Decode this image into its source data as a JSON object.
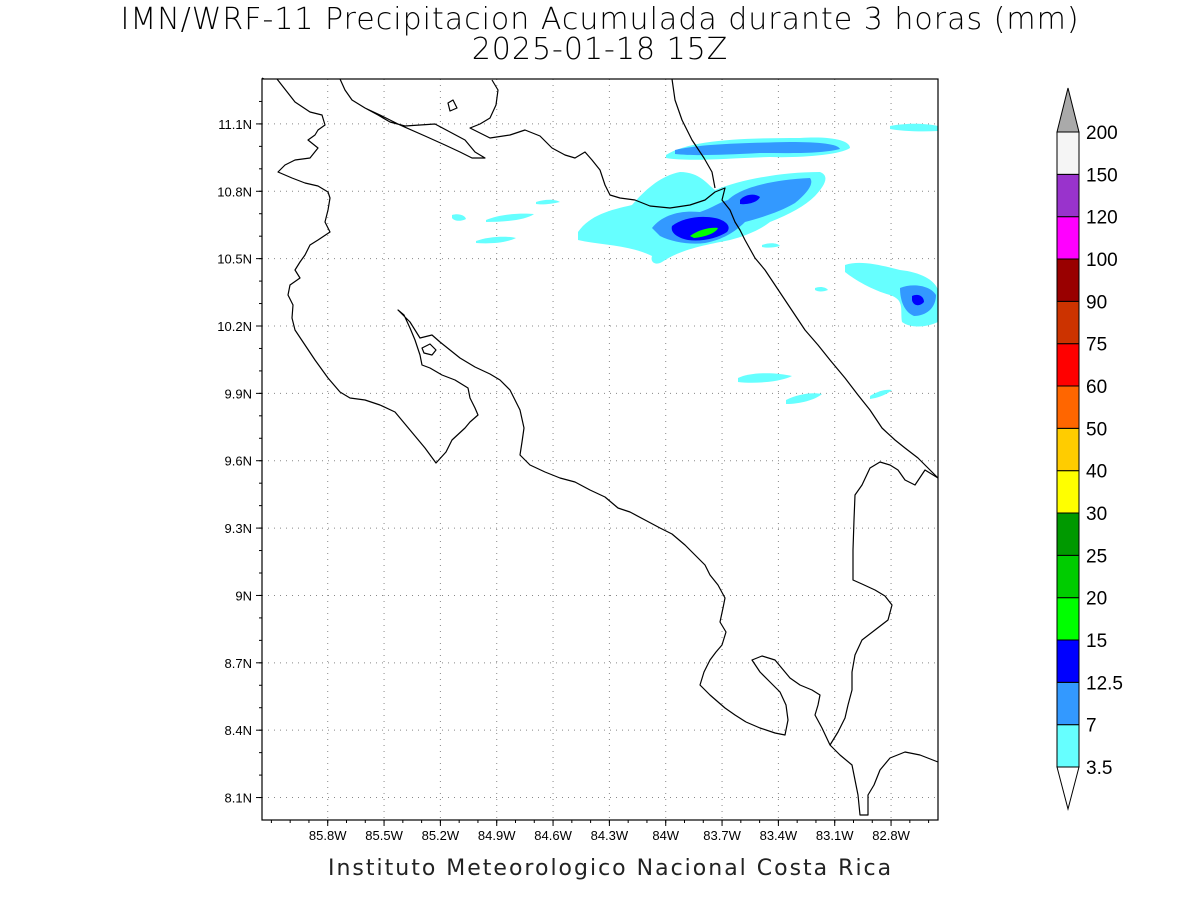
{
  "title": {
    "line1": "IMN/WRF-11 Precipitacion Acumulada durante 3 horas (mm)",
    "line2": "2025-01-18 15Z"
  },
  "credit": "Instituto Meteorologico Nacional Costa Rica",
  "map": {
    "lon_range": [
      -86.15,
      -82.55
    ],
    "lat_range": [
      8.0,
      11.3
    ],
    "lat_ticks": [
      "11.1N",
      "10.8N",
      "10.5N",
      "10.2N",
      "9.9N",
      "9.6N",
      "9.3N",
      "9N",
      "8.7N",
      "8.4N",
      "8.1N"
    ],
    "lon_ticks": [
      "85.8W",
      "85.5W",
      "85.2W",
      "84.9W",
      "84.6W",
      "84.3W",
      "84W",
      "83.7W",
      "83.4W",
      "83.1W",
      "82.8W"
    ],
    "grid": "dotted"
  },
  "colorbar": {
    "labels": [
      "3.5",
      "7",
      "12.5",
      "15",
      "20",
      "25",
      "30",
      "40",
      "50",
      "60",
      "75",
      "90",
      "100",
      "120",
      "150",
      "200"
    ],
    "colors": [
      "#66ffff",
      "#3399ff",
      "#0000ff",
      "#00ff00",
      "#00cc00",
      "#009900",
      "#ffff00",
      "#ffcc00",
      "#ff6600",
      "#ff0000",
      "#cc3300",
      "#990000",
      "#ff00ff",
      "#9933cc",
      "#f5f5f5",
      "#aaaaaa"
    ]
  }
}
